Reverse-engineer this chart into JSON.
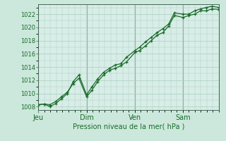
{
  "background_color": "#cce8dc",
  "plot_bg_color": "#d8ede8",
  "grid_color": "#aaccbb",
  "line_color": "#1a6b2a",
  "xlabel": "Pression niveau de la mer( hPa )",
  "ylim": [
    1007.5,
    1023.5
  ],
  "yticks": [
    1008,
    1010,
    1012,
    1014,
    1016,
    1018,
    1020,
    1022
  ],
  "day_labels": [
    "Jeu",
    "Dim",
    "Ven",
    "Sam"
  ],
  "day_positions": [
    0.0,
    0.333,
    0.667,
    1.0
  ],
  "xlim": [
    0.0,
    1.25
  ],
  "series1_x": [
    0.0,
    0.04,
    0.08,
    0.12,
    0.16,
    0.2,
    0.24,
    0.28,
    0.333,
    0.37,
    0.41,
    0.45,
    0.49,
    0.53,
    0.57,
    0.61,
    0.667,
    0.7,
    0.74,
    0.78,
    0.82,
    0.86,
    0.9,
    0.94,
    1.0,
    1.04,
    1.08,
    1.12,
    1.16,
    1.2,
    1.25
  ],
  "series1_y": [
    1008.3,
    1008.4,
    1008.3,
    1008.8,
    1009.5,
    1010.2,
    1011.5,
    1012.3,
    1009.5,
    1010.5,
    1011.8,
    1012.8,
    1013.5,
    1013.8,
    1014.2,
    1014.8,
    1016.2,
    1016.5,
    1017.2,
    1018.0,
    1018.8,
    1019.2,
    1020.2,
    1021.8,
    1021.5,
    1021.8,
    1022.0,
    1022.5,
    1022.5,
    1022.8,
    1022.7
  ],
  "series2_x": [
    0.0,
    0.04,
    0.08,
    0.12,
    0.16,
    0.2,
    0.24,
    0.28,
    0.333,
    0.37,
    0.41,
    0.45,
    0.49,
    0.53,
    0.57,
    0.61,
    0.667,
    0.7,
    0.74,
    0.78,
    0.82,
    0.86,
    0.9,
    0.94,
    1.0,
    1.04,
    1.08,
    1.12,
    1.16,
    1.2,
    1.25
  ],
  "series2_y": [
    1008.3,
    1008.4,
    1008.0,
    1008.5,
    1009.2,
    1010.0,
    1011.8,
    1012.8,
    1009.8,
    1011.0,
    1012.2,
    1013.2,
    1013.8,
    1014.3,
    1014.5,
    1015.5,
    1016.5,
    1017.0,
    1017.8,
    1018.5,
    1019.2,
    1019.8,
    1020.5,
    1022.2,
    1022.0,
    1022.0,
    1022.5,
    1022.8,
    1023.0,
    1023.2,
    1023.0
  ]
}
